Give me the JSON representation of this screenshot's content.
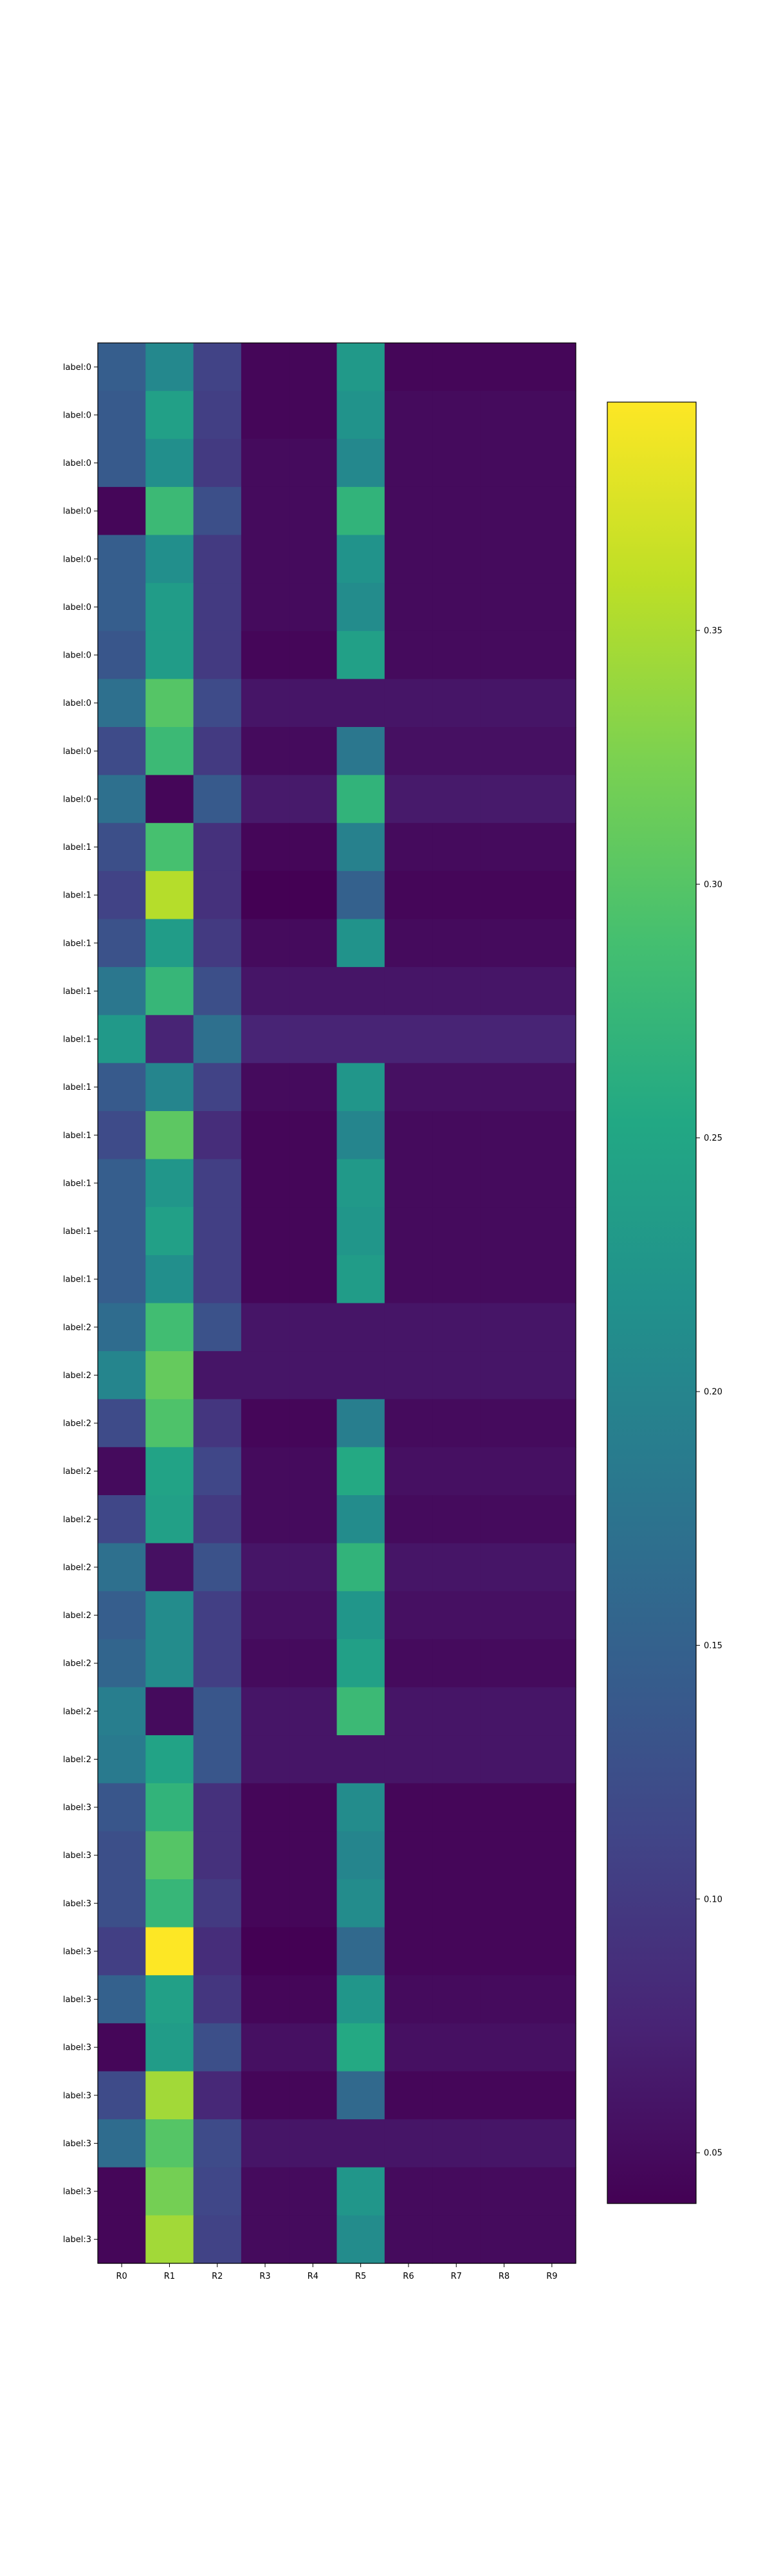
{
  "chart_data": {
    "type": "heatmap",
    "title": "",
    "xlabel": "",
    "ylabel": "",
    "colormap": "viridis",
    "columns": [
      "R0",
      "R1",
      "R2",
      "R3",
      "R4",
      "R5",
      "R6",
      "R7",
      "R8",
      "R9"
    ],
    "rows": [
      "label:0",
      "label:0",
      "label:0",
      "label:0",
      "label:0",
      "label:0",
      "label:0",
      "label:0",
      "label:0",
      "label:0",
      "label:1",
      "label:1",
      "label:1",
      "label:1",
      "label:1",
      "label:1",
      "label:1",
      "label:1",
      "label:1",
      "label:1",
      "label:2",
      "label:2",
      "label:2",
      "label:2",
      "label:2",
      "label:2",
      "label:2",
      "label:2",
      "label:2",
      "label:2",
      "label:3",
      "label:3",
      "label:3",
      "label:3",
      "label:3",
      "label:3",
      "label:3",
      "label:3",
      "label:3",
      "label:3"
    ],
    "values": [
      [
        0.145,
        0.205,
        0.11,
        0.045,
        0.045,
        0.23,
        0.045,
        0.045,
        0.045,
        0.045
      ],
      [
        0.14,
        0.24,
        0.105,
        0.045,
        0.045,
        0.22,
        0.05,
        0.05,
        0.05,
        0.05
      ],
      [
        0.14,
        0.215,
        0.1,
        0.05,
        0.05,
        0.205,
        0.05,
        0.05,
        0.05,
        0.05
      ],
      [
        0.045,
        0.28,
        0.125,
        0.05,
        0.05,
        0.27,
        0.05,
        0.05,
        0.05,
        0.05
      ],
      [
        0.145,
        0.215,
        0.1,
        0.05,
        0.05,
        0.22,
        0.05,
        0.05,
        0.05,
        0.05
      ],
      [
        0.145,
        0.235,
        0.1,
        0.05,
        0.05,
        0.21,
        0.05,
        0.05,
        0.05,
        0.05
      ],
      [
        0.135,
        0.235,
        0.1,
        0.045,
        0.045,
        0.24,
        0.05,
        0.05,
        0.05,
        0.05
      ],
      [
        0.17,
        0.3,
        0.12,
        0.06,
        0.06,
        0.06,
        0.06,
        0.06,
        0.06,
        0.06
      ],
      [
        0.12,
        0.28,
        0.1,
        0.05,
        0.05,
        0.18,
        0.055,
        0.055,
        0.055,
        0.055
      ],
      [
        0.17,
        0.045,
        0.14,
        0.065,
        0.065,
        0.27,
        0.065,
        0.065,
        0.065,
        0.065
      ],
      [
        0.125,
        0.29,
        0.09,
        0.045,
        0.045,
        0.195,
        0.05,
        0.05,
        0.05,
        0.05
      ],
      [
        0.11,
        0.355,
        0.09,
        0.04,
        0.04,
        0.15,
        0.045,
        0.045,
        0.045,
        0.045
      ],
      [
        0.13,
        0.235,
        0.1,
        0.05,
        0.05,
        0.22,
        0.05,
        0.05,
        0.05,
        0.05
      ],
      [
        0.18,
        0.275,
        0.125,
        0.06,
        0.06,
        0.06,
        0.06,
        0.06,
        0.06,
        0.06
      ],
      [
        0.23,
        0.075,
        0.17,
        0.075,
        0.075,
        0.075,
        0.075,
        0.075,
        0.075,
        0.075
      ],
      [
        0.14,
        0.2,
        0.11,
        0.05,
        0.05,
        0.225,
        0.055,
        0.055,
        0.055,
        0.055
      ],
      [
        0.12,
        0.305,
        0.085,
        0.045,
        0.045,
        0.2,
        0.05,
        0.05,
        0.05,
        0.05
      ],
      [
        0.145,
        0.225,
        0.105,
        0.045,
        0.045,
        0.23,
        0.05,
        0.05,
        0.05,
        0.05
      ],
      [
        0.145,
        0.24,
        0.105,
        0.045,
        0.045,
        0.225,
        0.05,
        0.05,
        0.05,
        0.05
      ],
      [
        0.145,
        0.215,
        0.105,
        0.045,
        0.045,
        0.235,
        0.05,
        0.05,
        0.05,
        0.05
      ],
      [
        0.165,
        0.285,
        0.13,
        0.06,
        0.06,
        0.06,
        0.06,
        0.06,
        0.06,
        0.06
      ],
      [
        0.2,
        0.31,
        0.06,
        0.06,
        0.06,
        0.06,
        0.06,
        0.06,
        0.06,
        0.06
      ],
      [
        0.12,
        0.295,
        0.095,
        0.045,
        0.045,
        0.19,
        0.05,
        0.05,
        0.05,
        0.05
      ],
      [
        0.05,
        0.245,
        0.115,
        0.05,
        0.05,
        0.255,
        0.055,
        0.055,
        0.055,
        0.055
      ],
      [
        0.115,
        0.24,
        0.1,
        0.05,
        0.05,
        0.21,
        0.05,
        0.05,
        0.05,
        0.05
      ],
      [
        0.17,
        0.055,
        0.13,
        0.06,
        0.06,
        0.27,
        0.06,
        0.06,
        0.06,
        0.06
      ],
      [
        0.145,
        0.21,
        0.105,
        0.055,
        0.055,
        0.225,
        0.055,
        0.055,
        0.055,
        0.055
      ],
      [
        0.155,
        0.21,
        0.105,
        0.05,
        0.05,
        0.24,
        0.05,
        0.05,
        0.05,
        0.05
      ],
      [
        0.19,
        0.05,
        0.135,
        0.06,
        0.06,
        0.28,
        0.06,
        0.06,
        0.06,
        0.06
      ],
      [
        0.185,
        0.245,
        0.135,
        0.06,
        0.06,
        0.06,
        0.06,
        0.06,
        0.06,
        0.06
      ],
      [
        0.135,
        0.27,
        0.09,
        0.045,
        0.045,
        0.21,
        0.045,
        0.045,
        0.045,
        0.045
      ],
      [
        0.125,
        0.3,
        0.09,
        0.045,
        0.045,
        0.2,
        0.045,
        0.045,
        0.045,
        0.045
      ],
      [
        0.125,
        0.275,
        0.1,
        0.045,
        0.045,
        0.21,
        0.045,
        0.045,
        0.045,
        0.045
      ],
      [
        0.105,
        0.395,
        0.085,
        0.04,
        0.04,
        0.16,
        0.045,
        0.045,
        0.045,
        0.045
      ],
      [
        0.15,
        0.24,
        0.095,
        0.045,
        0.045,
        0.225,
        0.05,
        0.05,
        0.05,
        0.05
      ],
      [
        0.045,
        0.235,
        0.125,
        0.055,
        0.055,
        0.255,
        0.055,
        0.055,
        0.055,
        0.055
      ],
      [
        0.12,
        0.345,
        0.08,
        0.045,
        0.045,
        0.16,
        0.045,
        0.045,
        0.045,
        0.045
      ],
      [
        0.165,
        0.3,
        0.12,
        0.06,
        0.06,
        0.06,
        0.06,
        0.06,
        0.06,
        0.06
      ],
      [
        0.045,
        0.32,
        0.115,
        0.05,
        0.05,
        0.225,
        0.05,
        0.05,
        0.05,
        0.05
      ],
      [
        0.045,
        0.345,
        0.11,
        0.05,
        0.05,
        0.21,
        0.05,
        0.05,
        0.05,
        0.05
      ]
    ],
    "colorbar": {
      "range": [
        0.04,
        0.395
      ],
      "ticks": [
        0.05,
        0.1,
        0.15,
        0.2,
        0.25,
        0.3,
        0.35
      ],
      "tick_labels": [
        "0.05",
        "0.10",
        "0.15",
        "0.20",
        "0.25",
        "0.30",
        "0.35"
      ]
    },
    "grid": false,
    "legend": "colorbar-right"
  }
}
